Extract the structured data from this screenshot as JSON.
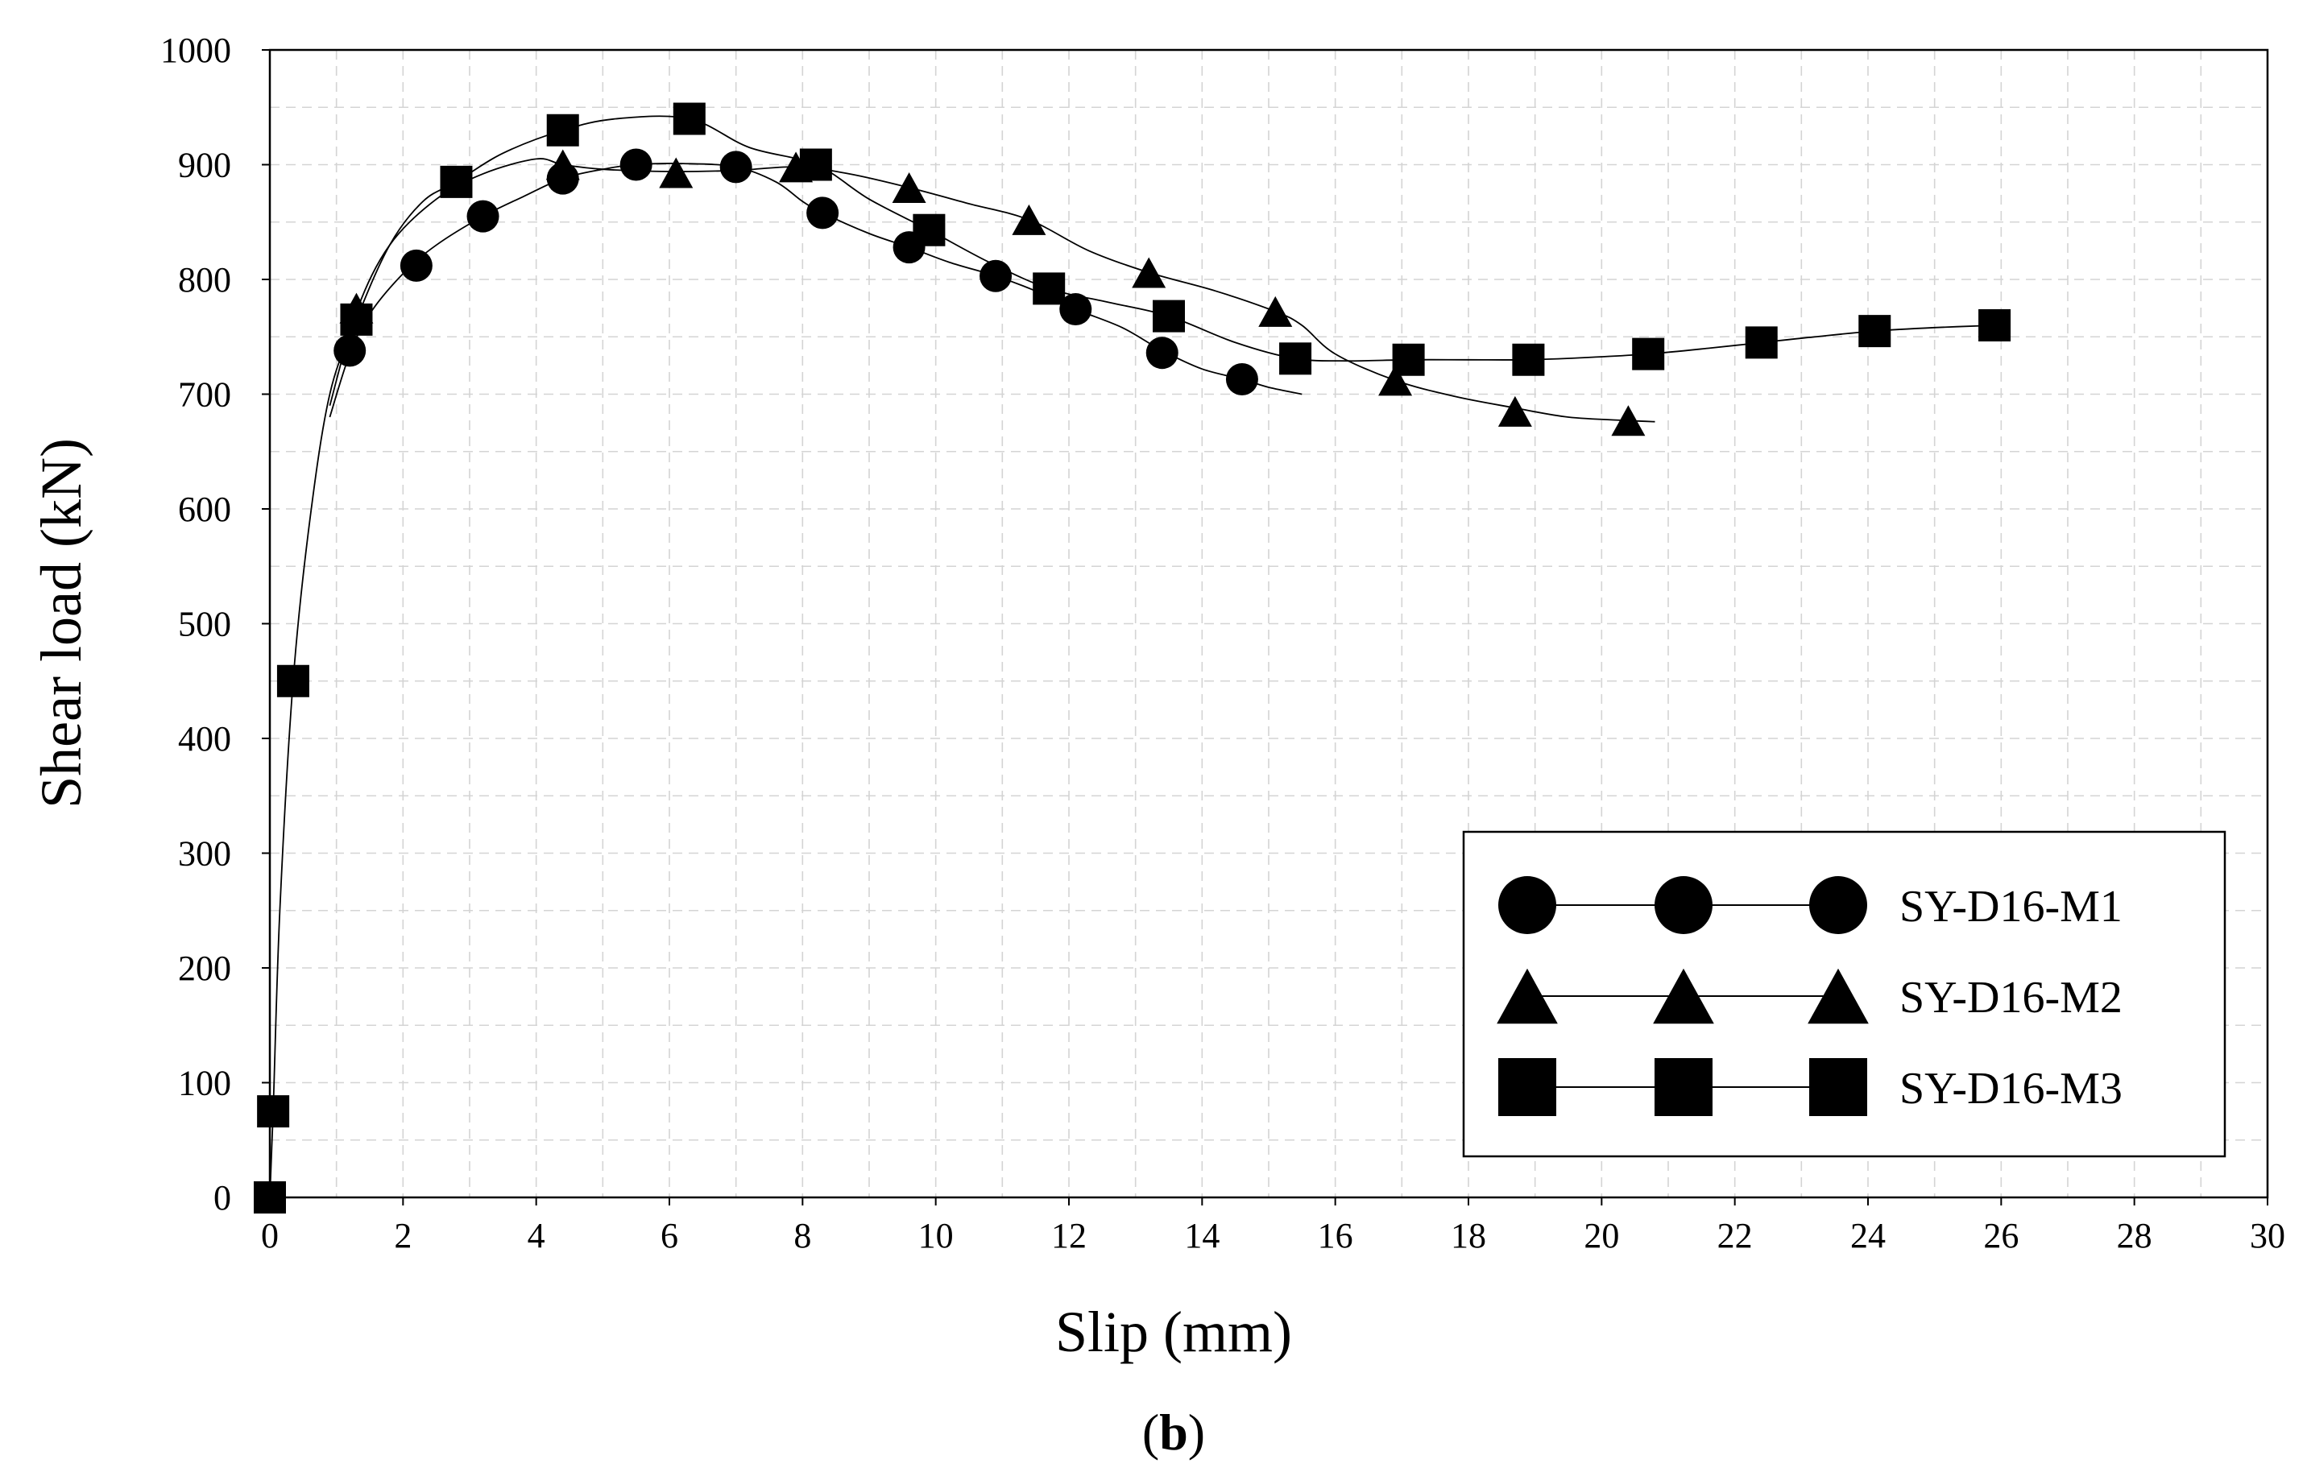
{
  "chart_data": {
    "type": "line",
    "xlabel": "Slip (mm)",
    "ylabel": "Shear load (kN)",
    "caption_prefix": "(",
    "caption_letter": "b",
    "caption_suffix": ")",
    "xlim": [
      0,
      30
    ],
    "ylim": [
      0,
      1000
    ],
    "x_ticks": [
      0,
      2,
      4,
      6,
      8,
      10,
      12,
      14,
      16,
      18,
      20,
      22,
      24,
      26,
      28,
      30
    ],
    "y_ticks": [
      0,
      100,
      200,
      300,
      400,
      500,
      600,
      700,
      800,
      900,
      1000
    ],
    "grid": true,
    "legend_position": "bottom-right",
    "series": [
      {
        "name": "SY-D16-M1",
        "marker": "circle",
        "curve": [
          [
            0.9,
            680
          ],
          [
            1.2,
            735
          ],
          [
            1.5,
            770
          ],
          [
            2.0,
            805
          ],
          [
            2.5,
            830
          ],
          [
            3.2,
            855
          ],
          [
            3.8,
            872
          ],
          [
            4.4,
            888
          ],
          [
            5.0,
            896
          ],
          [
            5.5,
            900
          ],
          [
            6.2,
            901
          ],
          [
            7.0,
            898
          ],
          [
            7.6,
            885
          ],
          [
            8.0,
            868
          ],
          [
            8.3,
            858
          ],
          [
            9.0,
            840
          ],
          [
            9.6,
            828
          ],
          [
            10.2,
            815
          ],
          [
            10.9,
            803
          ],
          [
            11.5,
            790
          ],
          [
            12.1,
            774
          ],
          [
            12.8,
            758
          ],
          [
            13.4,
            738
          ],
          [
            14.0,
            722
          ],
          [
            14.6,
            713
          ],
          [
            15.0,
            706
          ],
          [
            15.5,
            700
          ]
        ],
        "markers": [
          [
            1.2,
            738
          ],
          [
            2.2,
            812
          ],
          [
            3.2,
            855
          ],
          [
            4.4,
            888
          ],
          [
            5.5,
            900
          ],
          [
            7.0,
            898
          ],
          [
            8.3,
            858
          ],
          [
            9.6,
            828
          ],
          [
            10.9,
            803
          ],
          [
            12.1,
            774
          ],
          [
            13.4,
            736
          ],
          [
            14.6,
            713
          ]
        ]
      },
      {
        "name": "SY-D16-M2",
        "marker": "triangle",
        "curve": [
          [
            0.9,
            690
          ],
          [
            1.3,
            772
          ],
          [
            1.8,
            830
          ],
          [
            2.5,
            870
          ],
          [
            3.2,
            892
          ],
          [
            4.0,
            905
          ],
          [
            4.4,
            900
          ],
          [
            5.0,
            896
          ],
          [
            6.0,
            894
          ],
          [
            7.0,
            895
          ],
          [
            7.9,
            898
          ],
          [
            8.7,
            892
          ],
          [
            9.6,
            880
          ],
          [
            10.5,
            866
          ],
          [
            11.4,
            852
          ],
          [
            12.3,
            825
          ],
          [
            13.2,
            806
          ],
          [
            14.2,
            790
          ],
          [
            15.1,
            772
          ],
          [
            15.5,
            760
          ],
          [
            16.0,
            735
          ],
          [
            16.9,
            712
          ],
          [
            17.8,
            698
          ],
          [
            18.7,
            688
          ],
          [
            19.5,
            680
          ],
          [
            20.4,
            677
          ],
          [
            20.8,
            676
          ]
        ],
        "markers": [
          [
            1.3,
            775
          ],
          [
            4.4,
            900
          ],
          [
            6.1,
            893
          ],
          [
            7.9,
            898
          ],
          [
            9.6,
            880
          ],
          [
            11.4,
            852
          ],
          [
            13.2,
            806
          ],
          [
            15.1,
            772
          ],
          [
            16.9,
            712
          ],
          [
            18.7,
            685
          ],
          [
            20.4,
            677
          ]
        ]
      },
      {
        "name": "SY-D16-M3",
        "marker": "square",
        "curve": [
          [
            0,
            0
          ],
          [
            0.05,
            75
          ],
          [
            0.15,
            250
          ],
          [
            0.35,
            450
          ],
          [
            0.6,
            590
          ],
          [
            0.9,
            700
          ],
          [
            1.3,
            765
          ],
          [
            1.8,
            830
          ],
          [
            2.3,
            868
          ],
          [
            2.8,
            885
          ],
          [
            3.5,
            910
          ],
          [
            4.4,
            930
          ],
          [
            5.2,
            940
          ],
          [
            6.3,
            940
          ],
          [
            7.2,
            915
          ],
          [
            8.2,
            900
          ],
          [
            9.0,
            870
          ],
          [
            9.9,
            843
          ],
          [
            10.8,
            815
          ],
          [
            11.7,
            792
          ],
          [
            12.6,
            780
          ],
          [
            13.5,
            768
          ],
          [
            14.5,
            745
          ],
          [
            15.4,
            731
          ],
          [
            16.2,
            729
          ],
          [
            17.1,
            730
          ],
          [
            18.0,
            730
          ],
          [
            18.9,
            730
          ],
          [
            19.8,
            732
          ],
          [
            20.7,
            735
          ],
          [
            21.6,
            740
          ],
          [
            22.4,
            745
          ],
          [
            23.2,
            750
          ],
          [
            24.1,
            755
          ],
          [
            25.0,
            758
          ],
          [
            25.9,
            760
          ]
        ],
        "markers": [
          [
            0,
            0
          ],
          [
            0.05,
            75
          ],
          [
            0.35,
            450
          ],
          [
            1.3,
            765
          ],
          [
            2.8,
            885
          ],
          [
            4.4,
            930
          ],
          [
            6.3,
            940
          ],
          [
            8.2,
            900
          ],
          [
            9.9,
            843
          ],
          [
            11.7,
            792
          ],
          [
            13.5,
            768
          ],
          [
            15.4,
            731
          ],
          [
            17.1,
            730
          ],
          [
            18.9,
            730
          ],
          [
            20.7,
            735
          ],
          [
            22.4,
            745
          ],
          [
            24.1,
            755
          ],
          [
            25.9,
            760
          ]
        ]
      }
    ]
  }
}
